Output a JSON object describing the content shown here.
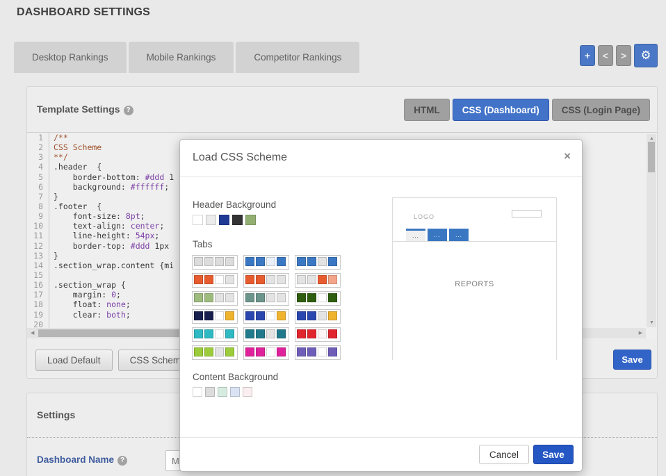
{
  "page": {
    "title": "DASHBOARD SETTINGS"
  },
  "nav": {
    "tabs": [
      "Desktop Rankings",
      "Mobile Rankings",
      "Competitor Rankings"
    ],
    "actions": {
      "add": "+",
      "prev": "<",
      "next": ">",
      "gear": "⚙"
    }
  },
  "template_panel": {
    "title": "Template Settings",
    "help": "?",
    "mode_buttons": [
      {
        "label": "HTML",
        "active": false
      },
      {
        "label": "CSS (Dashboard)",
        "active": true
      },
      {
        "label": "CSS (Login Page)",
        "active": false
      }
    ],
    "editor_lines": [
      [
        [
          "/**",
          "c"
        ]
      ],
      [
        [
          "CSS Scheme",
          "c"
        ]
      ],
      [
        [
          "**/",
          "c"
        ]
      ],
      [
        [
          ".header  {",
          "t"
        ]
      ],
      [
        [
          "    border-bottom: ",
          "t"
        ],
        [
          "#ddd",
          "v"
        ],
        [
          " 1",
          "t"
        ]
      ],
      [
        [
          "    background: ",
          "t"
        ],
        [
          "#ffffff",
          "v"
        ],
        [
          ";",
          "t"
        ]
      ],
      [
        [
          "}",
          "t"
        ]
      ],
      [
        [
          ".footer  {",
          "t"
        ]
      ],
      [
        [
          "    font-size: ",
          "t"
        ],
        [
          "8pt",
          "v"
        ],
        [
          ";",
          "t"
        ]
      ],
      [
        [
          "    text-align: ",
          "t"
        ],
        [
          "center",
          "v"
        ],
        [
          ";",
          "t"
        ]
      ],
      [
        [
          "    line-height: ",
          "t"
        ],
        [
          "54px",
          "v"
        ],
        [
          ";",
          "t"
        ]
      ],
      [
        [
          "    border-top: ",
          "t"
        ],
        [
          "#ddd",
          "v"
        ],
        [
          " 1px",
          "t"
        ]
      ],
      [
        [
          "}",
          "t"
        ]
      ],
      [
        [
          ".section_wrap.content {mi",
          "t"
        ]
      ],
      [
        [
          "",
          "t"
        ]
      ],
      [
        [
          ".section_wrap {",
          "t"
        ]
      ],
      [
        [
          "    margin: ",
          "t"
        ],
        [
          "0",
          "v"
        ],
        [
          ";",
          "t"
        ]
      ],
      [
        [
          "    float: ",
          "t"
        ],
        [
          "none",
          "v"
        ],
        [
          ";",
          "t"
        ]
      ],
      [
        [
          "    clear: ",
          "t"
        ],
        [
          "both",
          "v"
        ],
        [
          ";",
          "t"
        ]
      ],
      [
        [
          "",
          "t"
        ]
      ]
    ],
    "footer": {
      "load_default": "Load Default",
      "css_scheme": "CSS Scheme",
      "save": "Save"
    }
  },
  "settings_panel": {
    "title": "Settings",
    "help": "?",
    "dashboard_name_label": "Dashboard Name",
    "dashboard_name_value": "Ma"
  },
  "modal": {
    "title": "Load CSS Scheme",
    "close": "×",
    "header_background": {
      "label": "Header Background",
      "swatches": [
        "#ffffff",
        "#ececec",
        "#1e3a94",
        "#333333",
        "#93ae71"
      ]
    },
    "tabs_section": {
      "label": "Tabs",
      "groups": [
        [
          "#dcdcdc",
          "#dcdcdc",
          "#dcdcdc",
          "#dcdcdc"
        ],
        [
          "#3b78c3",
          "#3b78c3",
          "#e9f0fa",
          "#3b78c3"
        ],
        [
          "#3b78c3",
          "#3b78c3",
          "#e3e3e3",
          "#3b78c3"
        ],
        [
          "#e75c2e",
          "#e75c2e",
          "#ffffff",
          "#e3e3e3"
        ],
        [
          "#e75c2e",
          "#e75c2e",
          "#e3e3e3",
          "#e3e3e3"
        ],
        [
          "#e3e3e3",
          "#e3e3e3",
          "#e75c2e",
          "#f4a488"
        ],
        [
          "#9dbb7d",
          "#9dbb7d",
          "#e3e3e3",
          "#e3e3e3"
        ],
        [
          "#6b948b",
          "#6b948b",
          "#e3e3e3",
          "#e3e3e3"
        ],
        [
          "#2e5d10",
          "#2e5d10",
          "#ffffff",
          "#2e5d10"
        ],
        [
          "#17204d",
          "#17204d",
          "#ffffff",
          "#efb32d"
        ],
        [
          "#2946ae",
          "#2946ae",
          "#ffffff",
          "#efb32d"
        ],
        [
          "#2946ae",
          "#2946ae",
          "#e3e3e3",
          "#efb32d"
        ],
        [
          "#2fb9c3",
          "#2fb9c3",
          "#ffffff",
          "#2fb9c3"
        ],
        [
          "#21798c",
          "#21798c",
          "#e3e3e3",
          "#21798c"
        ],
        [
          "#e0252f",
          "#e0252f",
          "#fbf3f4",
          "#e0252f"
        ],
        [
          "#9ccb3b",
          "#9ccb3b",
          "#e3e3e3",
          "#9ccb3b"
        ],
        [
          "#df219b",
          "#df219b",
          "#ffffff",
          "#df219b"
        ],
        [
          "#6e5eb8",
          "#6e5eb8",
          "#ffffff",
          "#6e5eb8"
        ]
      ]
    },
    "content_background": {
      "label": "Content Background",
      "swatches": [
        "#ffffff",
        "#dcdcdc",
        "#d7ece1",
        "#dae3f3",
        "#faeef0"
      ]
    },
    "preview": {
      "logo": "LOGO",
      "tab_dots": "...",
      "reports": "REPORTS",
      "active_tab_color": "#3a77c2"
    },
    "footer": {
      "cancel": "Cancel",
      "save": "Save"
    }
  }
}
